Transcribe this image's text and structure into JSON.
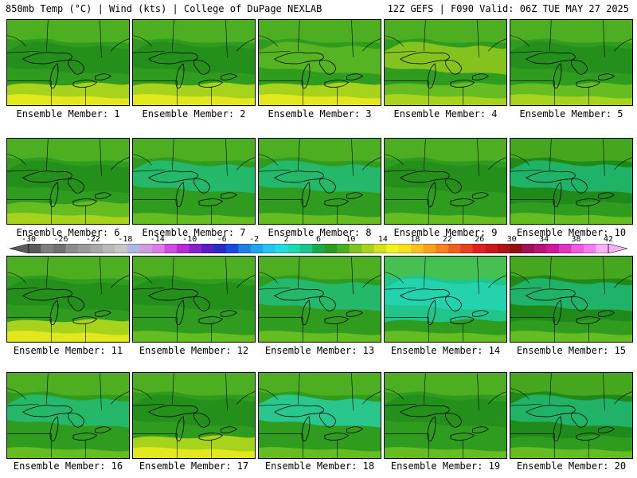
{
  "header": {
    "left": "850mb Temp (°C) | Wind (kts) | College of DuPage NEXLAB",
    "right": "12Z GEFS | F090 Valid: 06Z TUE MAY 27 2025"
  },
  "colors": {
    "base_green": "#2f9b1f",
    "dark_green": "#1f8a1a",
    "light_green": "#66bd22",
    "yellow_green": "#a8d31c",
    "yellow": "#e3e81e",
    "teal": "#21c48a",
    "aqua": "#26d8be",
    "map_lines": "#000000"
  },
  "members": [
    {
      "label": "Ensemble Member: 1"
    },
    {
      "label": "Ensemble Member: 2"
    },
    {
      "label": "Ensemble Member: 3"
    },
    {
      "label": "Ensemble Member: 4"
    },
    {
      "label": "Ensemble Member: 5"
    },
    {
      "label": "Ensemble Member: 6"
    },
    {
      "label": "Ensemble Member: 7"
    },
    {
      "label": "Ensemble Member: 8"
    },
    {
      "label": "Ensemble Member: 9"
    },
    {
      "label": "Ensemble Member: 10"
    },
    {
      "label": "Ensemble Member: 11"
    },
    {
      "label": "Ensemble Member: 12"
    },
    {
      "label": "Ensemble Member: 13"
    },
    {
      "label": "Ensemble Member: 14"
    },
    {
      "label": "Ensemble Member: 15"
    },
    {
      "label": "Ensemble Member: 16"
    },
    {
      "label": "Ensemble Member: 17"
    },
    {
      "label": "Ensemble Member: 18"
    },
    {
      "label": "Ensemble Member: 19"
    },
    {
      "label": "Ensemble Member: 20"
    }
  ],
  "colorbar": {
    "tick_labels": [
      "-30",
      "-26",
      "-22",
      "-18",
      "-14",
      "-10",
      "-6",
      "-2",
      "2",
      "6",
      "10",
      "14",
      "18",
      "22",
      "26",
      "30",
      "34",
      "38",
      "42"
    ],
    "colors": [
      "#5a5a5a",
      "#7f7f7f",
      "#707070",
      "#8c8c8c",
      "#9a9a9a",
      "#a8a8a8",
      "#b9b9b9",
      "#c7c7c7",
      "#aeb8e6",
      "#cf9be3",
      "#e07ae6",
      "#d24be0",
      "#b82ad6",
      "#8a22d0",
      "#5a1ec8",
      "#2a2ac8",
      "#1a4ae0",
      "#1f7fe8",
      "#1fa6ea",
      "#22c6f0",
      "#22dce0",
      "#22d8b0",
      "#21c48a",
      "#1faa4a",
      "#2f9b1f",
      "#4aae20",
      "#7cc520",
      "#a8d31c",
      "#d2e21e",
      "#f2f21e",
      "#f8e01e",
      "#f8c21e",
      "#f8a21e",
      "#f6821e",
      "#f2601e",
      "#ea401e",
      "#e0201e",
      "#cc1818",
      "#b01414",
      "#941010",
      "#a0105a",
      "#b81478",
      "#d0189a",
      "#e034c0",
      "#f05ae0",
      "#f47cf0",
      "#f8b0f8"
    ]
  }
}
